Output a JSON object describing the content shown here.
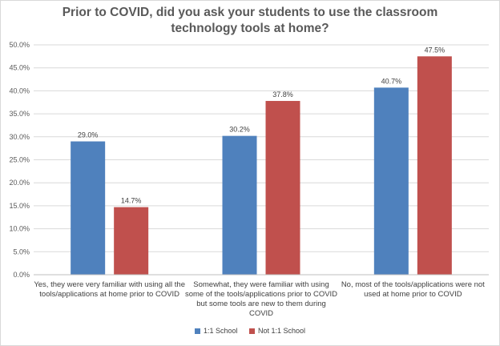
{
  "chart_data": {
    "type": "bar",
    "title": "Prior to COVID, did you ask your students to use the classroom technology tools at home?",
    "categories": [
      "Yes, they were very familiar with using all the tools/applications at home prior to COVID",
      "Somewhat, they were familiar with using some of the tools/applications prior to COVID but some tools are new to them during COVID",
      "No, most of the tools/applications were not used at home prior to COVID"
    ],
    "category_lines": [
      [
        "Yes, they were very familiar with using all the",
        "tools/applications at home prior to COVID"
      ],
      [
        "Somewhat, they were familiar with using",
        "some of the tools/applications prior to COVID",
        "but some tools are new to them during",
        "COVID"
      ],
      [
        "No, most of the tools/applications were not",
        "used at home prior to COVID"
      ]
    ],
    "series": [
      {
        "name": "1:1 School",
        "values": [
          29.0,
          30.2,
          40.7
        ],
        "color": "#4f81bd"
      },
      {
        "name": "Not 1:1 School",
        "values": [
          14.7,
          37.8,
          47.5
        ],
        "color": "#c0504d"
      }
    ],
    "data_labels": [
      [
        "29.0%",
        "30.2%",
        "40.7%"
      ],
      [
        "14.7%",
        "37.8%",
        "47.5%"
      ]
    ],
    "y_ticks": [
      "0.0%",
      "5.0%",
      "10.0%",
      "15.0%",
      "20.0%",
      "25.0%",
      "30.0%",
      "35.0%",
      "40.0%",
      "45.0%",
      "50.0%"
    ],
    "ylim": [
      0,
      50
    ],
    "y_step": 5,
    "grid": true,
    "legend_position": "bottom"
  }
}
